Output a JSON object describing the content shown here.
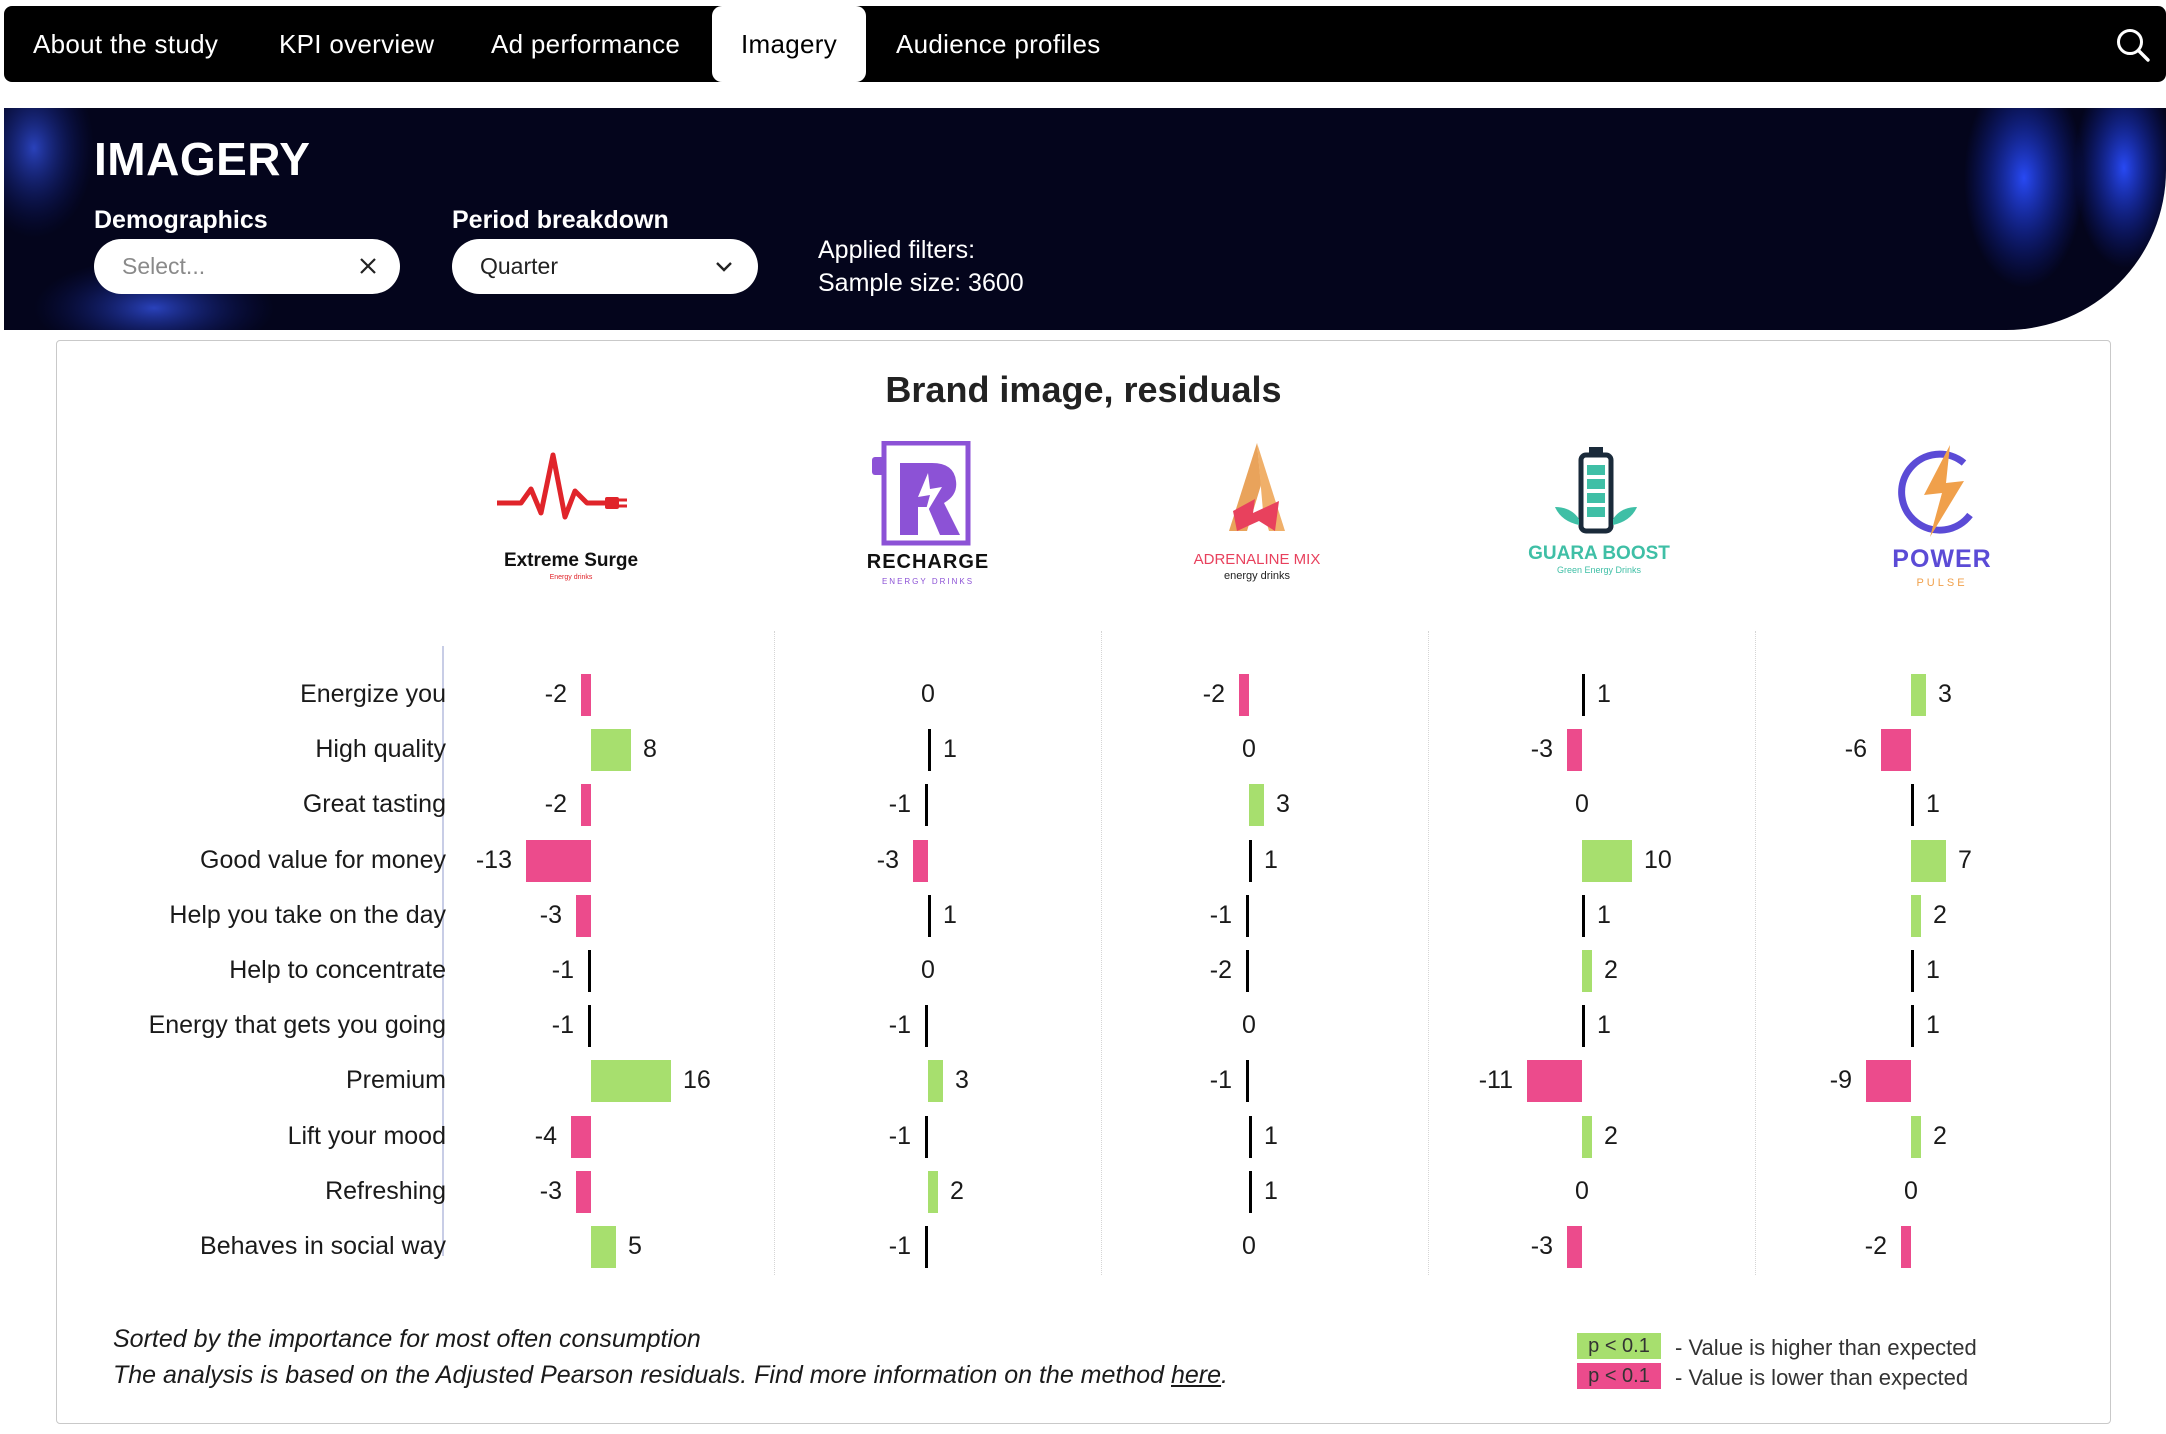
{
  "nav": {
    "tabs": [
      "About the study",
      "KPI overview",
      "Ad performance",
      "Imagery",
      "Audience profiles"
    ],
    "active_tab": "Imagery",
    "search_icon": "search-icon"
  },
  "hero": {
    "title": "IMAGERY",
    "demographics": {
      "label": "Demographics",
      "placeholder": "Select..."
    },
    "period": {
      "label": "Period breakdown",
      "value": "Quarter"
    },
    "applied_filters": "Applied filters:",
    "sample_size": "Sample size: 3600"
  },
  "chart_data": {
    "type": "bar",
    "title": "Brand image, residuals",
    "categories": [
      "Energize you",
      "High quality",
      "Great tasting",
      "Good value for money",
      "Help you take on the day",
      "Help to concentrate",
      "Energy that gets you going",
      "Premium",
      "Lift your mood",
      "Refreshing",
      "Behaves in social way"
    ],
    "series": [
      {
        "name": "Extreme Surge",
        "subtitle": "Energy drinks",
        "values": [
          -2,
          8,
          -2,
          -13,
          -3,
          -1,
          -1,
          16,
          -4,
          -3,
          5
        ],
        "significance": [
          "neg",
          "pos",
          "neg",
          "neg",
          "neg",
          "ns",
          "ns",
          "pos",
          "neg",
          "neg",
          "pos"
        ]
      },
      {
        "name": "RECHARGE",
        "subtitle": "ENERGY DRINKS",
        "values": [
          0,
          1,
          -1,
          -3,
          1,
          0,
          -1,
          3,
          -1,
          2,
          -1
        ],
        "significance": [
          "ns",
          "ns",
          "ns",
          "neg",
          "ns",
          "ns",
          "ns",
          "pos",
          "ns",
          "pos",
          "ns"
        ]
      },
      {
        "name": "ADRENALINE MIX",
        "subtitle": "energy drinks",
        "values": [
          -2,
          0,
          3,
          1,
          -1,
          -2,
          0,
          -1,
          1,
          1,
          0
        ],
        "significance": [
          "neg",
          "ns",
          "pos",
          "ns",
          "ns",
          "ns",
          "ns",
          "ns",
          "ns",
          "ns",
          "ns"
        ]
      },
      {
        "name": "GUARA BOOST",
        "subtitle": "Green Energy Drinks",
        "values": [
          1,
          -3,
          0,
          10,
          1,
          2,
          1,
          -11,
          2,
          0,
          -3
        ],
        "significance": [
          "ns",
          "neg",
          "ns",
          "pos",
          "ns",
          "pos",
          "ns",
          "neg",
          "pos",
          "ns",
          "neg"
        ]
      },
      {
        "name": "POWER",
        "subtitle": "PULSE",
        "values": [
          3,
          -6,
          1,
          7,
          2,
          1,
          1,
          -9,
          2,
          0,
          -2
        ],
        "significance": [
          "pos",
          "neg",
          "ns",
          "pos",
          "pos",
          "ns",
          "ns",
          "neg",
          "pos",
          "ns",
          "neg"
        ]
      }
    ],
    "colors": {
      "higher": "#a7df6e",
      "lower": "#ec4b8c",
      "not_significant": "#000000"
    }
  },
  "footer": {
    "note1": "Sorted by the importance for most often consumption",
    "note2": "The analysis is based on the Adjusted Pearson residuals. Find more information on the method ",
    "link": "here",
    "note2_end": "."
  },
  "legend": {
    "pos_swatch": "p < 0.1",
    "pos_text": "- Value is higher than expected",
    "neg_swatch": "p < 0.1",
    "neg_text": "- Value is lower than expected"
  }
}
